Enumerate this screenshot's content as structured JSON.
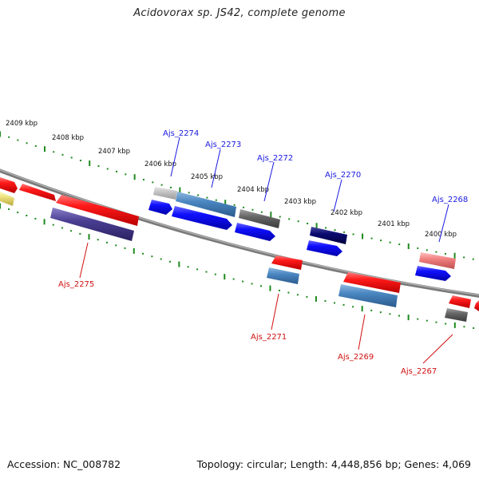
{
  "title": "Acidovorax sp. JS42, complete genome",
  "accession": "Accession: NC_008782",
  "topology": "Topology: circular; Length: 4,448,856 bp; Genes: 4,069",
  "kbp_labels": [
    "2409 kbp",
    "2408 kbp",
    "2407 kbp",
    "2406 kbp",
    "2405 kbp",
    "2404 kbp",
    "2403 kbp",
    "2402 kbp",
    "2401 kbp",
    "2400 kbp"
  ],
  "gene_labels_top": [
    "Ajs_2274",
    "Ajs_2273",
    "Ajs_2272",
    "Ajs_2270",
    "Ajs_2268"
  ],
  "gene_labels_bottom": [
    "Ajs_2275",
    "Ajs_2271",
    "Ajs_2269",
    "Ajs_2267"
  ],
  "colors": {
    "blue_label": "#1a1adf",
    "red_label": "#d01010",
    "tick": "#1e8a1e",
    "axis": "#888888"
  }
}
